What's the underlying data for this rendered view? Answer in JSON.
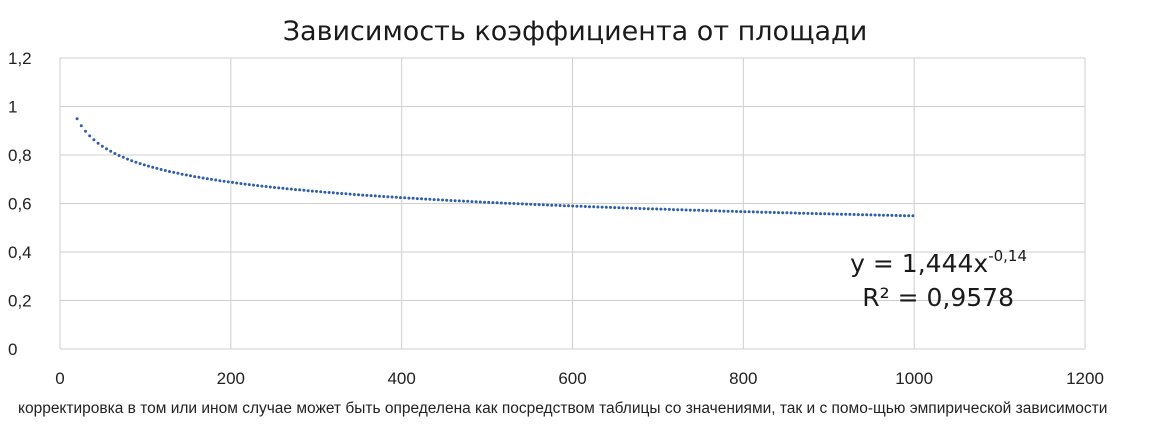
{
  "chart_data": {
    "type": "scatter",
    "title": "Зависимость коэффициента от площади",
    "xlabel": "",
    "ylabel": "",
    "xlim": [
      0,
      1200
    ],
    "ylim": [
      0,
      1.2
    ],
    "x_ticks": [
      "0",
      "200",
      "400",
      "600",
      "800",
      "1000",
      "1200"
    ],
    "y_ticks": [
      "0",
      "0,2",
      "0,4",
      "0,6",
      "0,8",
      "1",
      "1,2"
    ],
    "grid": true,
    "series": [
      {
        "style": "dotted",
        "color": "#2f5fa8",
        "trendline": {
          "a": 1.444,
          "b": -0.14
        },
        "x_range": [
          20,
          1000
        ],
        "x": [
          20,
          50,
          100,
          200,
          300,
          400,
          500,
          600,
          700,
          800,
          900,
          1000
        ],
        "y": [
          0.95,
          0.83,
          0.76,
          0.72,
          0.68,
          0.66,
          0.64,
          0.63,
          0.62,
          0.61,
          0.6,
          0.59
        ]
      }
    ],
    "annotations": {
      "equation_base": "y = 1,444x",
      "equation_exponent": "-0,14",
      "r2": "R² = 0,9578"
    }
  },
  "caption": "корректировка в том или ином случае может быть определена как посредством таблицы со значениями, так и с помо-щью эмпирической зависимости"
}
